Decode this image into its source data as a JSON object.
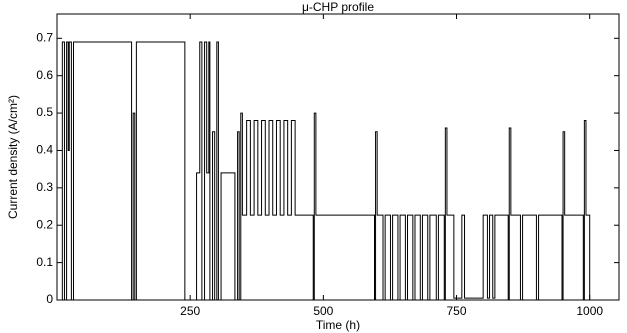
{
  "chart_data": {
    "type": "line",
    "title": "μ-CHP profile",
    "xlabel": "Time (h)",
    "ylabel": "Current density (A/cm²)",
    "color": "#000000",
    "grid": false,
    "xlim": [
      0,
      1055
    ],
    "xticks": [
      250,
      500,
      750,
      1000
    ],
    "ylim": [
      0,
      0.765
    ],
    "yticks": [
      0,
      0.1,
      0.2,
      0.3,
      0.4,
      0.5,
      0.6,
      0.7
    ],
    "x": [
      10,
      10,
      14,
      14,
      18,
      18,
      21,
      21,
      23,
      23,
      27,
      27,
      31,
      31,
      140,
      140,
      143,
      143,
      146,
      146,
      149,
      149,
      240,
      240,
      262,
      262,
      268,
      268,
      272,
      272,
      277,
      277,
      281,
      281,
      285,
      285,
      287,
      287,
      292,
      292,
      296,
      296,
      300,
      300,
      303,
      303,
      308,
      308,
      334,
      334,
      339,
      339,
      342,
      342,
      345,
      345,
      348,
      348,
      356,
      356,
      363,
      363,
      370,
      370,
      377,
      377,
      384,
      384,
      391,
      391,
      398,
      398,
      405,
      405,
      412,
      412,
      419,
      419,
      426,
      426,
      433,
      433,
      440,
      440,
      447,
      447,
      481,
      481,
      483,
      483,
      486,
      486,
      596,
      596,
      598,
      598,
      601,
      601,
      612,
      612,
      616,
      616,
      626,
      626,
      630,
      630,
      640,
      640,
      644,
      644,
      654,
      654,
      658,
      658,
      668,
      668,
      672,
      672,
      682,
      682,
      686,
      686,
      696,
      696,
      700,
      700,
      712,
      712,
      716,
      716,
      727,
      727,
      729,
      729,
      732,
      732,
      745,
      745,
      760,
      760,
      765,
      765,
      800,
      800,
      808,
      808,
      812,
      812,
      818,
      818,
      822,
      822,
      847,
      847,
      849,
      849,
      852,
      852,
      870,
      870,
      874,
      874,
      900,
      900,
      904,
      904,
      948,
      948,
      950,
      950,
      953,
      953,
      988,
      988,
      990,
      990,
      993,
      993,
      1000,
      1000
    ],
    "values": [
      0,
      0.69,
      0.69,
      0,
      0,
      0.69,
      0.69,
      0.4,
      0.4,
      0.69,
      0.69,
      0,
      0,
      0.69,
      0.69,
      0,
      0,
      0.5,
      0.5,
      0,
      0,
      0.69,
      0.69,
      0,
      0,
      0.34,
      0.34,
      0.69,
      0.69,
      0,
      0,
      0.69,
      0.69,
      0.34,
      0.34,
      0.69,
      0.69,
      0,
      0,
      0.45,
      0.45,
      0,
      0,
      0.69,
      0.69,
      0,
      0,
      0.34,
      0.34,
      0,
      0,
      0.45,
      0.45,
      0,
      0,
      0.5,
      0.5,
      0.227,
      0.227,
      0.48,
      0.48,
      0.227,
      0.227,
      0.48,
      0.48,
      0.227,
      0.227,
      0.48,
      0.48,
      0.227,
      0.227,
      0.48,
      0.48,
      0.227,
      0.227,
      0.48,
      0.48,
      0.227,
      0.227,
      0.48,
      0.48,
      0.227,
      0.227,
      0.48,
      0.48,
      0.227,
      0.227,
      0,
      0,
      0.5,
      0.5,
      0.227,
      0.227,
      0,
      0,
      0.45,
      0.45,
      0.227,
      0.227,
      0,
      0,
      0.227,
      0.227,
      0,
      0,
      0.227,
      0.227,
      0,
      0,
      0.227,
      0.227,
      0,
      0,
      0.227,
      0.227,
      0,
      0,
      0.227,
      0.227,
      0,
      0,
      0.227,
      0.227,
      0,
      0,
      0.227,
      0.227,
      0,
      0,
      0.227,
      0.227,
      0,
      0,
      0.46,
      0.46,
      0.227,
      0.227,
      0.005,
      0.005,
      0.227,
      0.227,
      0.005,
      0.005,
      0.227,
      0.227,
      0.005,
      0.005,
      0.227,
      0.227,
      0.005,
      0.005,
      0.227,
      0.227,
      0,
      0,
      0.46,
      0.46,
      0.227,
      0.227,
      0,
      0,
      0.227,
      0.227,
      0,
      0,
      0.227,
      0.227,
      0,
      0,
      0.45,
      0.45,
      0.227,
      0.227,
      0,
      0,
      0.48,
      0.48,
      0.227,
      0.227,
      0
    ]
  }
}
